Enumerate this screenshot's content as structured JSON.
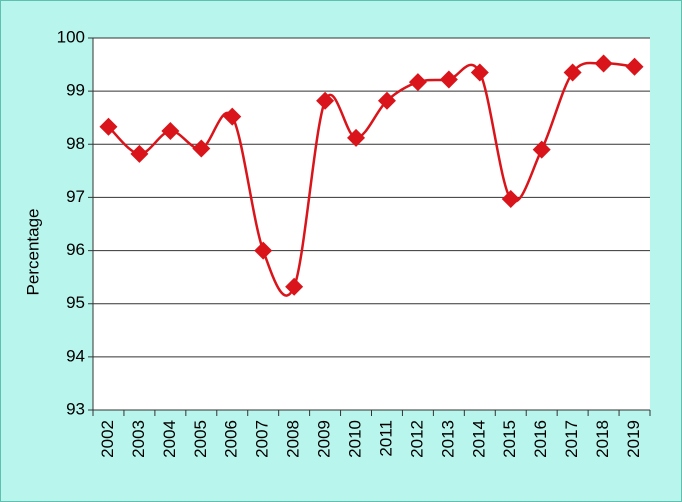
{
  "chart_data": {
    "type": "line",
    "y_label": "Percentage",
    "categories": [
      "2002",
      "2003",
      "2004",
      "2005",
      "2006",
      "2007",
      "2008",
      "2009",
      "2010",
      "2011",
      "2012",
      "2013",
      "2014",
      "2015",
      "2016",
      "2017",
      "2018",
      "2019"
    ],
    "series": [
      {
        "name": "Percentage",
        "color": "#d9141a",
        "values": [
          98.33,
          97.82,
          98.25,
          97.92,
          98.52,
          96.0,
          95.32,
          98.82,
          98.12,
          98.82,
          99.17,
          99.22,
          99.35,
          96.97,
          97.9,
          99.35,
          99.52,
          99.46
        ]
      }
    ],
    "ylim": [
      93,
      100
    ],
    "yticks": [
      93,
      94,
      95,
      96,
      97,
      98,
      99,
      100
    ],
    "grid": true
  }
}
